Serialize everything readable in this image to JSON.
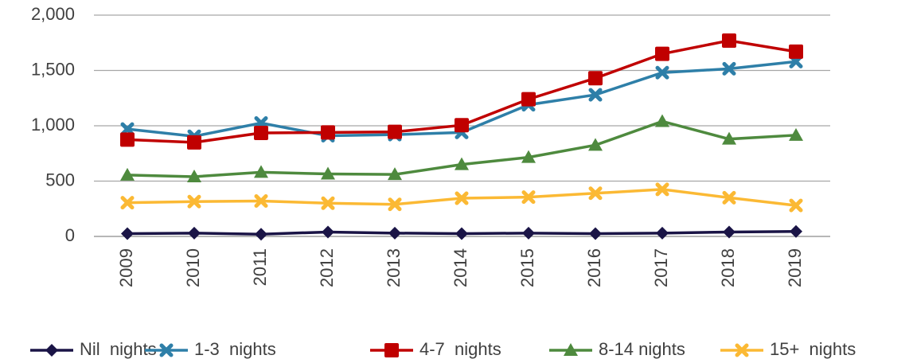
{
  "chart_data": {
    "type": "line",
    "categories": [
      "2009",
      "2010",
      "2011",
      "2012",
      "2013",
      "2014",
      "2015",
      "2016",
      "2017",
      "2018",
      "2019"
    ],
    "series": [
      {
        "name": "Nil  nights",
        "color": "#1a1446",
        "marker": "diamond",
        "values": [
          25,
          30,
          20,
          40,
          30,
          25,
          30,
          25,
          30,
          40,
          45
        ]
      },
      {
        "name": "1-3  nights",
        "color": "#2e7fa8",
        "marker": "x",
        "values": [
          970,
          905,
          1025,
          910,
          920,
          940,
          1190,
          1280,
          1480,
          1515,
          1580
        ]
      },
      {
        "name": "4-7  nights",
        "color": "#c00000",
        "marker": "square",
        "values": [
          875,
          850,
          935,
          940,
          945,
          1005,
          1240,
          1430,
          1650,
          1770,
          1670
        ]
      },
      {
        "name": "8-14 nights",
        "color": "#4e8a3e",
        "marker": "triangle",
        "values": [
          555,
          540,
          580,
          565,
          560,
          650,
          715,
          825,
          1040,
          880,
          915
        ]
      },
      {
        "name": "15+  nights",
        "color": "#fbb934",
        "marker": "x",
        "values": [
          305,
          315,
          320,
          300,
          290,
          345,
          355,
          390,
          425,
          350,
          280
        ]
      }
    ],
    "ylim": [
      0,
      2000
    ],
    "yticks": [
      0,
      500,
      {
        "value": 1000,
        "label": "1,000"
      },
      {
        "value": 1500,
        "label": "1,500"
      },
      {
        "value": 2000,
        "label": "2,000"
      }
    ],
    "grid": true,
    "legend": "bottom"
  }
}
